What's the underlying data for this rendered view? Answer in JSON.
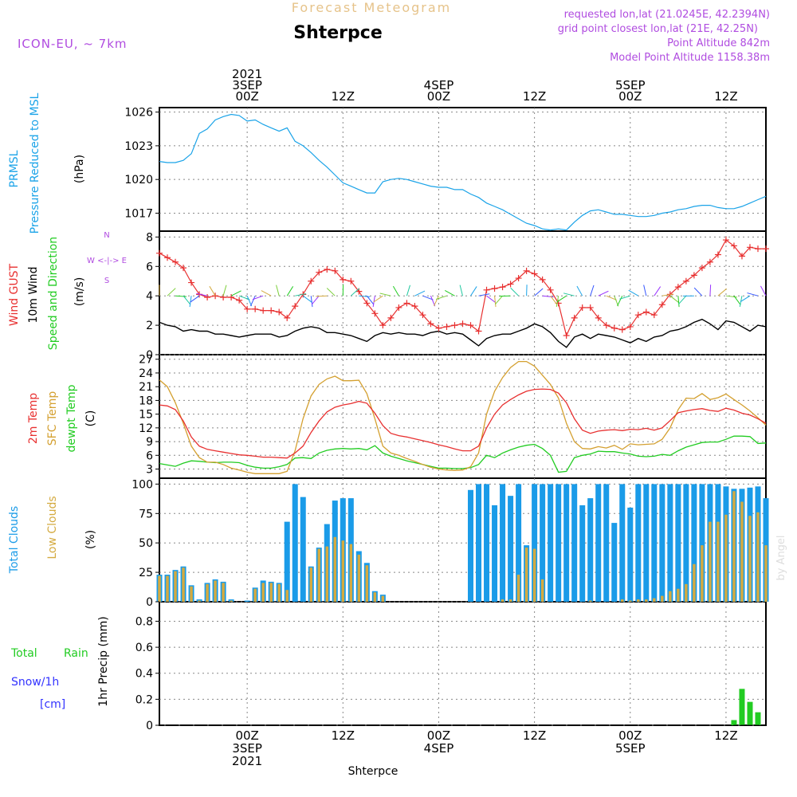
{
  "header": {
    "title": "Forecast Meteogram",
    "location": "Shterpce",
    "model": "ICON-EU, ~ 7km",
    "requested": "requested lon,lat (21.0245E, 42.2394N)",
    "gridpoint": "grid point closest lon,lat (21E, 42.25N)",
    "altitude": "Point Altitude 842m",
    "model_altitude": "Model Point Altitude 1158.38m",
    "footer": "Shterpce",
    "watermark": "by Angel"
  },
  "time_axis": {
    "top_labels": [
      {
        "t": 0,
        "lines": [
          "2021",
          "3SEP",
          "00Z"
        ]
      },
      {
        "t": 12,
        "lines": [
          "12Z"
        ]
      },
      {
        "t": 24,
        "lines": [
          "4SEP",
          "00Z"
        ]
      },
      {
        "t": 36,
        "lines": [
          "12Z"
        ]
      },
      {
        "t": 48,
        "lines": [
          "5SEP",
          "00Z"
        ]
      },
      {
        "t": 60,
        "lines": [
          "12Z"
        ]
      }
    ],
    "bottom_labels": [
      {
        "t": 0,
        "lines": [
          "00Z",
          "3SEP",
          "2021"
        ]
      },
      {
        "t": 12,
        "lines": [
          "12Z"
        ]
      },
      {
        "t": 24,
        "lines": [
          "00Z",
          "4SEP"
        ]
      },
      {
        "t": 36,
        "lines": [
          "12Z"
        ]
      },
      {
        "t": 48,
        "lines": [
          "00Z",
          "5SEP"
        ]
      },
      {
        "t": 60,
        "lines": [
          "12Z"
        ]
      }
    ],
    "range": [
      -11,
      65
    ]
  },
  "panels": {
    "pressure": {
      "labels": [
        "PRMSL",
        "Pressure Reduced to MSL",
        "(hPa)"
      ],
      "ticks": [
        "1017",
        "1020",
        "1023",
        "1026"
      ]
    },
    "wind": {
      "labels": [
        "Wind GUST",
        "10m Wind",
        "Speed and Direction",
        "(m/s)"
      ],
      "compass": [
        "N",
        "W <-|-> E",
        "S"
      ],
      "ticks": [
        "0",
        "2",
        "4",
        "6",
        "8"
      ]
    },
    "temp": {
      "labels": [
        "2m Temp",
        "SFC Temp",
        "dewpt Temp",
        "(C)"
      ],
      "ticks": [
        "3",
        "6",
        "9",
        "12",
        "15",
        "18",
        "21",
        "24",
        "27"
      ]
    },
    "clouds": {
      "labels": [
        "Total Clouds",
        "Low Clouds",
        "(%)"
      ],
      "ticks": [
        "0",
        "25",
        "50",
        "75",
        "100"
      ]
    },
    "precip": {
      "labels": [
        "Total",
        "Rain",
        "Snow/1h",
        "[cm]",
        "1hr Precip (mm)"
      ],
      "ticks": [
        "0",
        "0.2",
        "0.4",
        "0.6",
        "0.8"
      ]
    }
  },
  "colors": {
    "pressure": "#1aa3e8",
    "gust": "#e83030",
    "wind10": "#000000",
    "temp2m": "#e83030",
    "sfc": "#d4a030",
    "dewpt": "#22cc22",
    "total_clouds": "#1a9be8",
    "low_clouds": "#d4aa40",
    "rain": "#22cc22",
    "snow": "#3333ff",
    "meta": "#b04ce0"
  },
  "chart_data": [
    {
      "type": "line",
      "name": "pressure",
      "xlabel": "",
      "ylabel": "(hPa)",
      "ylim": [
        1015.4,
        1026.4
      ],
      "x": [
        -11,
        -10,
        -9,
        -8,
        -7,
        -6,
        -5,
        -4,
        -3,
        -2,
        -1,
        0,
        1,
        2,
        3,
        4,
        5,
        6,
        7,
        8,
        9,
        10,
        11,
        12,
        13,
        14,
        15,
        16,
        17,
        18,
        19,
        20,
        21,
        22,
        23,
        24,
        25,
        26,
        27,
        28,
        29,
        30,
        31,
        32,
        33,
        34,
        35,
        36,
        37,
        38,
        39,
        40,
        41,
        42,
        43,
        44,
        45,
        46,
        47,
        48,
        49,
        50,
        51,
        52,
        53,
        54,
        55,
        56,
        57,
        58,
        59,
        60,
        61,
        62,
        63,
        64,
        65
      ],
      "series": [
        {
          "name": "PRMSL",
          "values": [
            1021.6,
            1021.5,
            1021.5,
            1021.7,
            1022.3,
            1024.1,
            1024.5,
            1025.3,
            1025.6,
            1025.8,
            1025.7,
            1025.2,
            1025.3,
            1024.9,
            1024.6,
            1024.3,
            1024.6,
            1023.4,
            1023.0,
            1022.4,
            1021.7,
            1021.1,
            1020.4,
            1019.7,
            1019.4,
            1019.1,
            1018.8,
            1018.8,
            1019.8,
            1020.0,
            1020.1,
            1020.0,
            1019.8,
            1019.6,
            1019.4,
            1019.3,
            1019.3,
            1019.1,
            1019.1,
            1018.7,
            1018.4,
            1017.9,
            1017.6,
            1017.3,
            1016.9,
            1016.5,
            1016.1,
            1015.9,
            1015.6,
            1015.5,
            1015.6,
            1015.5,
            1016.2,
            1016.8,
            1017.2,
            1017.3,
            1017.1,
            1016.9,
            1016.9,
            1016.8,
            1016.7,
            1016.7,
            1016.8,
            1017.0,
            1017.1,
            1017.3,
            1017.4,
            1017.6,
            1017.7,
            1017.7,
            1017.5,
            1017.4,
            1017.4,
            1017.6,
            1017.9,
            1018.2,
            1018.5
          ]
        }
      ]
    },
    {
      "type": "line",
      "name": "wind",
      "xlabel": "",
      "ylabel": "(m/s)",
      "ylim": [
        0,
        8.4
      ],
      "x": [
        -11,
        -10,
        -9,
        -8,
        -7,
        -6,
        -5,
        -4,
        -3,
        -2,
        -1,
        0,
        1,
        2,
        3,
        4,
        5,
        6,
        7,
        8,
        9,
        10,
        11,
        12,
        13,
        14,
        15,
        16,
        17,
        18,
        19,
        20,
        21,
        22,
        23,
        24,
        25,
        26,
        27,
        28,
        29,
        30,
        31,
        32,
        33,
        34,
        35,
        36,
        37,
        38,
        39,
        40,
        41,
        42,
        43,
        44,
        45,
        46,
        47,
        48,
        49,
        50,
        51,
        52,
        53,
        54,
        55,
        56,
        57,
        58,
        59,
        60,
        61,
        62,
        63,
        64,
        65
      ],
      "series": [
        {
          "name": "Wind GUST",
          "values": [
            6.9,
            6.6,
            6.3,
            5.9,
            4.9,
            4.1,
            3.9,
            4.0,
            3.9,
            3.9,
            3.7,
            3.1,
            3.1,
            3.0,
            3.0,
            2.9,
            2.5,
            3.3,
            4.1,
            5.0,
            5.6,
            5.8,
            5.7,
            5.1,
            5.0,
            4.3,
            3.5,
            2.8,
            2.0,
            2.5,
            3.2,
            3.5,
            3.3,
            2.7,
            2.1,
            1.8,
            1.9,
            2.0,
            2.1,
            2.0,
            1.6,
            4.4,
            4.5,
            4.6,
            4.8,
            5.2,
            5.7,
            5.5,
            5.1,
            4.4,
            3.5,
            1.3,
            2.5,
            3.2,
            3.2,
            2.5,
            2.0,
            1.8,
            1.7,
            1.9,
            2.7,
            2.9,
            2.7,
            3.4,
            4.1,
            4.6,
            5.0,
            5.4,
            5.9,
            6.3,
            6.8,
            7.8,
            7.4,
            6.7,
            7.3,
            7.2,
            7.2
          ]
        },
        {
          "name": "10m Wind",
          "values": [
            2.2,
            2.0,
            1.9,
            1.6,
            1.7,
            1.6,
            1.6,
            1.4,
            1.4,
            1.3,
            1.2,
            1.3,
            1.4,
            1.4,
            1.4,
            1.2,
            1.3,
            1.6,
            1.8,
            1.9,
            1.8,
            1.5,
            1.5,
            1.4,
            1.3,
            1.1,
            0.9,
            1.3,
            1.5,
            1.4,
            1.5,
            1.4,
            1.4,
            1.3,
            1.5,
            1.6,
            1.4,
            1.5,
            1.4,
            1.0,
            0.6,
            1.1,
            1.3,
            1.4,
            1.4,
            1.6,
            1.8,
            2.1,
            1.9,
            1.5,
            0.9,
            0.5,
            1.2,
            1.4,
            1.1,
            1.4,
            1.3,
            1.2,
            1.0,
            0.8,
            1.1,
            0.9,
            1.2,
            1.3,
            1.6,
            1.7,
            1.9,
            2.2,
            2.4,
            2.1,
            1.7,
            2.3,
            2.2,
            1.9,
            1.6,
            2.0,
            1.9
          ]
        }
      ]
    },
    {
      "type": "line",
      "name": "temperature",
      "xlabel": "",
      "ylabel": "(C)",
      "ylim": [
        1,
        28
      ],
      "x": [
        -11,
        -10,
        -9,
        -8,
        -7,
        -6,
        -5,
        -4,
        -3,
        -2,
        -1,
        0,
        1,
        2,
        3,
        4,
        5,
        6,
        7,
        8,
        9,
        10,
        11,
        12,
        13,
        14,
        15,
        16,
        17,
        18,
        19,
        20,
        21,
        22,
        23,
        24,
        25,
        26,
        27,
        28,
        29,
        30,
        31,
        32,
        33,
        34,
        35,
        36,
        37,
        38,
        39,
        40,
        41,
        42,
        43,
        44,
        45,
        46,
        47,
        48,
        49,
        50,
        51,
        52,
        53,
        54,
        55,
        56,
        57,
        58,
        59,
        60,
        61,
        62,
        63,
        64,
        65
      ],
      "series": [
        {
          "name": "2m Temp",
          "values": [
            17.0,
            16.8,
            16.0,
            13.5,
            10.0,
            8.0,
            7.3,
            7.0,
            6.7,
            6.4,
            6.1,
            6.0,
            5.8,
            5.6,
            5.6,
            5.5,
            5.4,
            6.5,
            8.0,
            11.0,
            13.5,
            15.5,
            16.5,
            17.0,
            17.3,
            17.8,
            17.4,
            15.2,
            12.5,
            10.8,
            10.3,
            10.0,
            9.6,
            9.2,
            8.8,
            8.3,
            7.9,
            7.4,
            7.0,
            7.0,
            8.0,
            12.0,
            15.0,
            17.0,
            18.2,
            19.2,
            20.0,
            20.4,
            20.5,
            20.4,
            19.6,
            17.5,
            14.0,
            11.5,
            10.8,
            11.3,
            11.5,
            11.6,
            11.4,
            11.7,
            11.6,
            11.9,
            11.5,
            12.0,
            13.6,
            15.3,
            15.7,
            16.0,
            16.2,
            15.8,
            15.6,
            16.3,
            15.9,
            15.2,
            14.8,
            14.0,
            13.0
          ]
        },
        {
          "name": "SFC Temp",
          "values": [
            22.5,
            21.0,
            17.5,
            13.0,
            8.0,
            5.5,
            4.5,
            4.5,
            4.0,
            3.2,
            2.8,
            2.3,
            2.0,
            2.0,
            2.0,
            2.0,
            2.5,
            7.0,
            14.0,
            19.0,
            21.5,
            22.7,
            23.3,
            22.3,
            22.3,
            22.4,
            19.5,
            14.0,
            8.0,
            6.5,
            6.0,
            5.3,
            4.7,
            4.0,
            3.4,
            3.0,
            2.8,
            2.7,
            2.8,
            3.5,
            6.5,
            15.0,
            20.0,
            23.0,
            25.2,
            26.5,
            26.5,
            25.5,
            23.5,
            21.5,
            18.5,
            13.0,
            9.0,
            7.5,
            7.4,
            7.9,
            7.6,
            8.2,
            7.3,
            8.5,
            8.3,
            8.4,
            8.5,
            9.5,
            12.0,
            16.0,
            18.5,
            18.4,
            19.5,
            18.2,
            18.6,
            19.4,
            18.2,
            17.0,
            15.7,
            14.2,
            12.6
          ]
        },
        {
          "name": "dewpt Temp",
          "values": [
            4.2,
            3.9,
            3.6,
            4.3,
            4.8,
            4.7,
            4.5,
            4.4,
            4.5,
            4.5,
            4.4,
            3.8,
            3.4,
            3.2,
            3.2,
            3.5,
            4.0,
            5.4,
            5.5,
            5.3,
            6.5,
            7.1,
            7.4,
            7.5,
            7.4,
            7.5,
            7.2,
            8.1,
            6.5,
            5.8,
            5.3,
            4.8,
            4.4,
            4.0,
            3.6,
            3.2,
            3.2,
            3.1,
            3.1,
            3.3,
            4.0,
            6.0,
            5.5,
            6.5,
            7.2,
            7.8,
            8.2,
            8.4,
            7.5,
            6.0,
            2.3,
            2.5,
            5.5,
            6.0,
            6.3,
            6.9,
            6.8,
            6.8,
            6.5,
            6.3,
            5.8,
            5.7,
            5.8,
            6.2,
            6.0,
            7.0,
            7.8,
            8.3,
            8.8,
            8.9,
            8.9,
            9.5,
            10.2,
            10.2,
            10.1,
            8.6,
            8.7
          ]
        }
      ]
    },
    {
      "type": "bar",
      "name": "clouds",
      "xlabel": "",
      "ylabel": "(%)",
      "ylim": [
        0,
        105
      ],
      "x": [
        -11,
        -10,
        -9,
        -8,
        -7,
        -6,
        -5,
        -4,
        -3,
        -2,
        -1,
        0,
        1,
        2,
        3,
        4,
        5,
        6,
        7,
        8,
        9,
        10,
        11,
        12,
        13,
        14,
        15,
        16,
        17,
        18,
        19,
        20,
        21,
        22,
        23,
        24,
        25,
        26,
        27,
        28,
        29,
        30,
        31,
        32,
        33,
        34,
        35,
        36,
        37,
        38,
        39,
        40,
        41,
        42,
        43,
        44,
        45,
        46,
        47,
        48,
        49,
        50,
        51,
        52,
        53,
        54,
        55,
        56,
        57,
        58,
        59,
        60,
        61,
        62,
        63,
        64,
        65
      ],
      "series": [
        {
          "name": "Total Clouds",
          "values": [
            23,
            23,
            27,
            30,
            14,
            2,
            16,
            19,
            17,
            2,
            0,
            1,
            12,
            18,
            17,
            16,
            68,
            100,
            89,
            30,
            46,
            66,
            86,
            88,
            88,
            43,
            33,
            9,
            6,
            0,
            0,
            0,
            0,
            0,
            0,
            0,
            0,
            0,
            0,
            95,
            100,
            100,
            82,
            100,
            90,
            100,
            48,
            100,
            100,
            100,
            100,
            100,
            100,
            82,
            88,
            100,
            100,
            67,
            100,
            80,
            100,
            100,
            100,
            100,
            100,
            100,
            100,
            100,
            100,
            100,
            100,
            98,
            96,
            96,
            97,
            98,
            88
          ]
        },
        {
          "name": "Low Clouds",
          "values": [
            22,
            22,
            26,
            29,
            13,
            1,
            15,
            18,
            16,
            1,
            0,
            0,
            11,
            16,
            16,
            15,
            10,
            0,
            0,
            29,
            45,
            47,
            55,
            52,
            49,
            40,
            31,
            8,
            5,
            0,
            0,
            0,
            0,
            0,
            0,
            0,
            0,
            0,
            0,
            0,
            0,
            0,
            0,
            2,
            2,
            23,
            46,
            45,
            19,
            0,
            0,
            0,
            0,
            0,
            1,
            0,
            0,
            0,
            2,
            1,
            2,
            2,
            3,
            5,
            9,
            11,
            15,
            32,
            48,
            68,
            68,
            74,
            94,
            85,
            73,
            76,
            48
          ]
        }
      ]
    },
    {
      "type": "bar",
      "name": "precip",
      "xlabel": "",
      "ylabel": "1hr Precip (mm)",
      "ylim": [
        0,
        0.95
      ],
      "x": [
        61,
        62,
        63,
        64
      ],
      "series": [
        {
          "name": "Total Rain",
          "values": [
            0.04,
            0.28,
            0.18,
            0.1
          ]
        },
        {
          "name": "Snow/1h",
          "values": [
            0,
            0,
            0,
            0
          ]
        }
      ]
    }
  ]
}
